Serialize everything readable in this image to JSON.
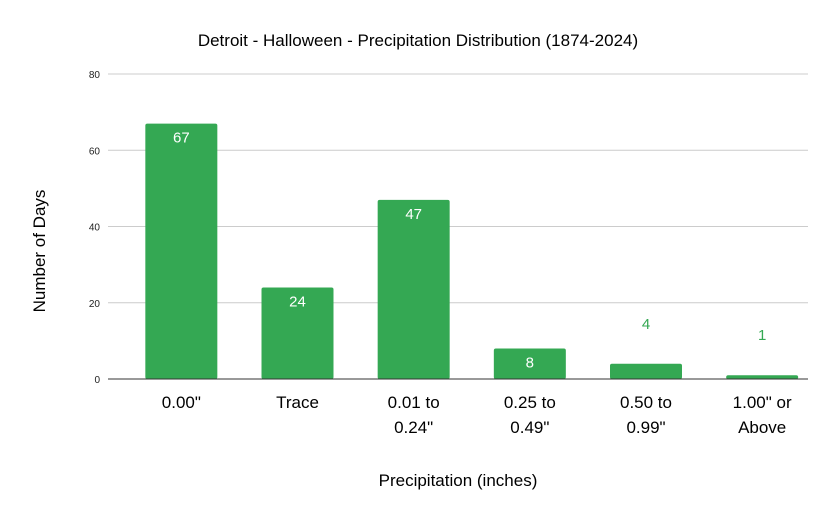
{
  "chart_data": {
    "type": "bar",
    "title": "Detroit - Halloween - Precipitation Distribution (1874-2024)",
    "xlabel": "Precipitation (inches)",
    "ylabel": "Number of Days",
    "categories": [
      [
        "0.00\""
      ],
      [
        "Trace"
      ],
      [
        "0.01 to",
        "0.24\""
      ],
      [
        "0.25 to",
        "0.49\""
      ],
      [
        "0.50 to",
        "0.99\""
      ],
      [
        "1.00\" or",
        "Above"
      ]
    ],
    "values": [
      67,
      24,
      47,
      8,
      4,
      1
    ],
    "ylim": [
      0,
      80
    ],
    "yticks": [
      0,
      20,
      40,
      60,
      80
    ],
    "grid": true,
    "legend": "none",
    "bar_color": "#34a853"
  }
}
